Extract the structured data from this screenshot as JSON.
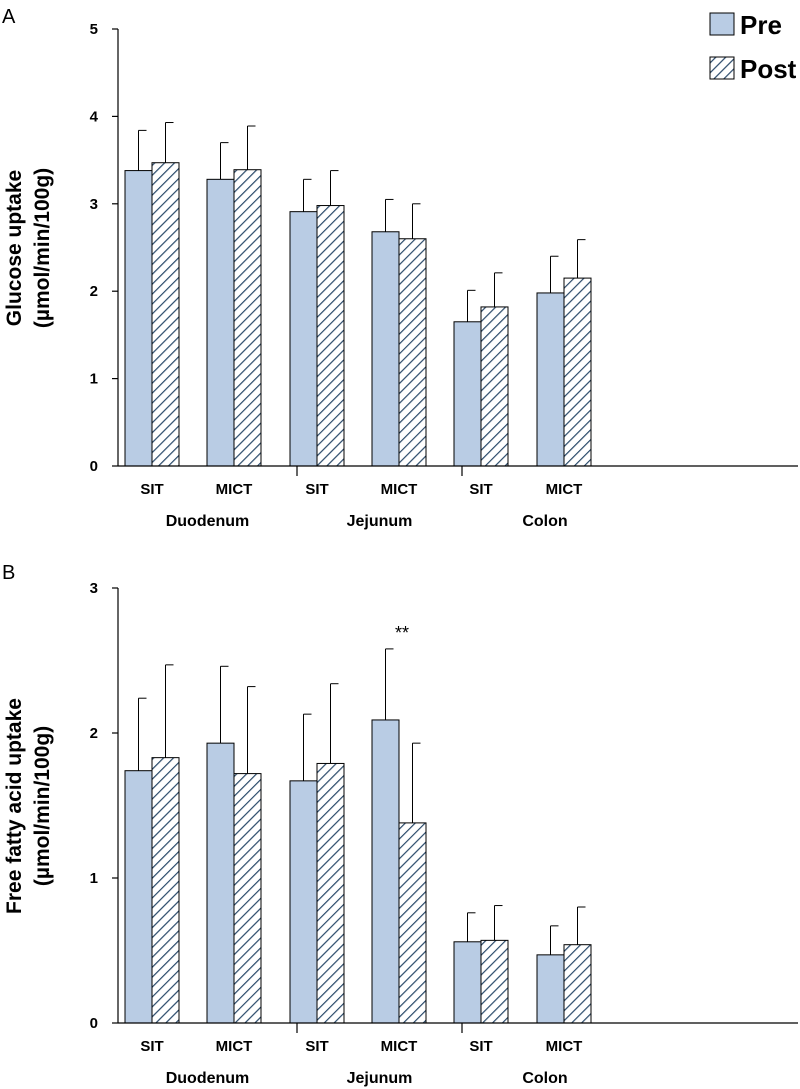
{
  "colors": {
    "pre_fill": "#b9cce4",
    "post_stripe": "#2a4a6a",
    "axis": "#000000"
  },
  "legend": {
    "items": [
      {
        "key": "pre",
        "label": "Pre"
      },
      {
        "key": "post",
        "label": "Post"
      }
    ]
  },
  "chart_data": [
    {
      "type": "bar",
      "panel": "A",
      "ylabel_line1": "Glucose uptake",
      "ylabel_line2": "(µmol/min/100g)",
      "ylim": [
        0,
        5
      ],
      "yticks": [
        0,
        1,
        2,
        3,
        4,
        5
      ],
      "groups": [
        "Duodenum",
        "Jejunum",
        "Colon"
      ],
      "categories": [
        "SIT",
        "MICT",
        "SIT",
        "MICT",
        "SIT",
        "MICT"
      ],
      "series": [
        {
          "name": "Pre",
          "values": [
            3.38,
            3.28,
            2.91,
            2.68,
            1.65,
            1.98
          ],
          "errors": [
            0.46,
            0.42,
            0.37,
            0.37,
            0.36,
            0.42
          ]
        },
        {
          "name": "Post",
          "values": [
            3.47,
            3.39,
            2.98,
            2.6,
            1.82,
            2.15
          ],
          "errors": [
            0.46,
            0.5,
            0.4,
            0.4,
            0.39,
            0.44
          ]
        }
      ],
      "annotations": []
    },
    {
      "type": "bar",
      "panel": "B",
      "ylabel_line1": "Free fatty acid uptake",
      "ylabel_line2": "(µmol/min/100g)",
      "ylim": [
        0,
        3
      ],
      "yticks": [
        0,
        1,
        2,
        3
      ],
      "groups": [
        "Duodenum",
        "Jejunum",
        "Colon"
      ],
      "categories": [
        "SIT",
        "MICT",
        "SIT",
        "MICT",
        "SIT",
        "MICT"
      ],
      "series": [
        {
          "name": "Pre",
          "values": [
            1.74,
            1.93,
            1.67,
            2.09,
            0.56,
            0.47
          ],
          "errors": [
            0.5,
            0.53,
            0.46,
            0.49,
            0.2,
            0.2
          ]
        },
        {
          "name": "Post",
          "values": [
            1.83,
            1.72,
            1.79,
            1.38,
            0.57,
            0.54
          ],
          "errors": [
            0.64,
            0.6,
            0.55,
            0.55,
            0.24,
            0.26
          ]
        }
      ],
      "annotations": [
        {
          "category_index": 3,
          "text": "**"
        }
      ]
    }
  ]
}
